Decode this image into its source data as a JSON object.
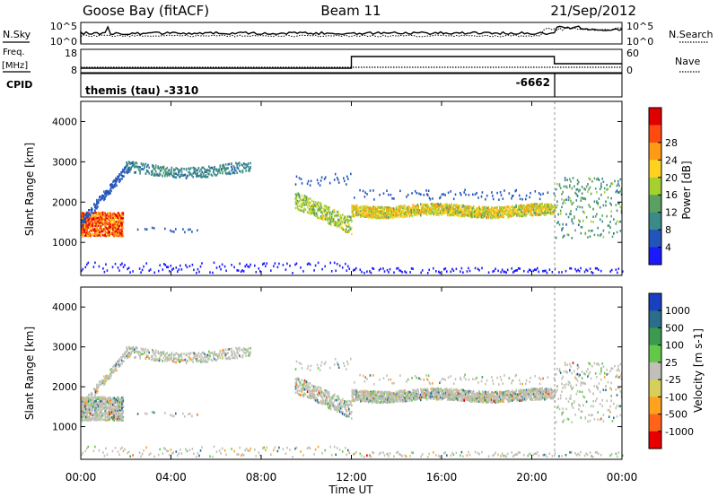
{
  "header": {
    "station": "Goose Bay (fitACF)",
    "beam": "Beam 11",
    "date": "21/Sep/2012"
  },
  "aux_labels": {
    "nsky": "N.Sky",
    "nsearch": "N.Search",
    "freq": "Freq.",
    "mhz": "[MHz]",
    "nave": "Nave",
    "cpid": "CPID",
    "cpid_left": "themis (tau) -3310",
    "cpid_right": "-6662"
  },
  "aux_ticks": {
    "noise_left": [
      "10^5",
      "10^0"
    ],
    "noise_right": [
      "10^5",
      "10^0"
    ],
    "freq_left": [
      "18",
      "8"
    ],
    "nave_right": [
      "60",
      "0"
    ]
  },
  "chart_data": [
    {
      "type": "heatmap",
      "title": "",
      "ylabel": "Slant Range [km]",
      "xlabel": "",
      "ylim": [
        180,
        4500
      ],
      "yticks": [
        "1000",
        "2000",
        "3000",
        "4000"
      ],
      "colorbar": {
        "label": "Power [dB]",
        "ticks": [
          "4",
          "8",
          "12",
          "16",
          "20",
          "24",
          "28"
        ],
        "colors": [
          "#1a1aff",
          "#2255bb",
          "#3b8a8a",
          "#5aa060",
          "#a6d030",
          "#ffd21f",
          "#ff9a14",
          "#ff4a10",
          "#e00000"
        ]
      }
    },
    {
      "type": "heatmap",
      "title": "",
      "ylabel": "Slant Range [km]",
      "xlabel": "Time UT",
      "ylim": [
        180,
        4500
      ],
      "yticks": [
        "1000",
        "2000",
        "3000",
        "4000"
      ],
      "xticks": [
        "00:00",
        "04:00",
        "08:00",
        "12:00",
        "16:00",
        "20:00",
        "00:00"
      ],
      "colorbar": {
        "label": "Velocity [m s-1]",
        "ticks": [
          "1000",
          "500",
          "100",
          "25",
          "-25",
          "-100",
          "-500",
          "-1000"
        ],
        "colors": [
          "#1840c0",
          "#2a6e8c",
          "#3c9a50",
          "#63c84a",
          "#c0c0b8",
          "#d6d05a",
          "#ffa21c",
          "#ff6418",
          "#e80000"
        ]
      }
    }
  ]
}
